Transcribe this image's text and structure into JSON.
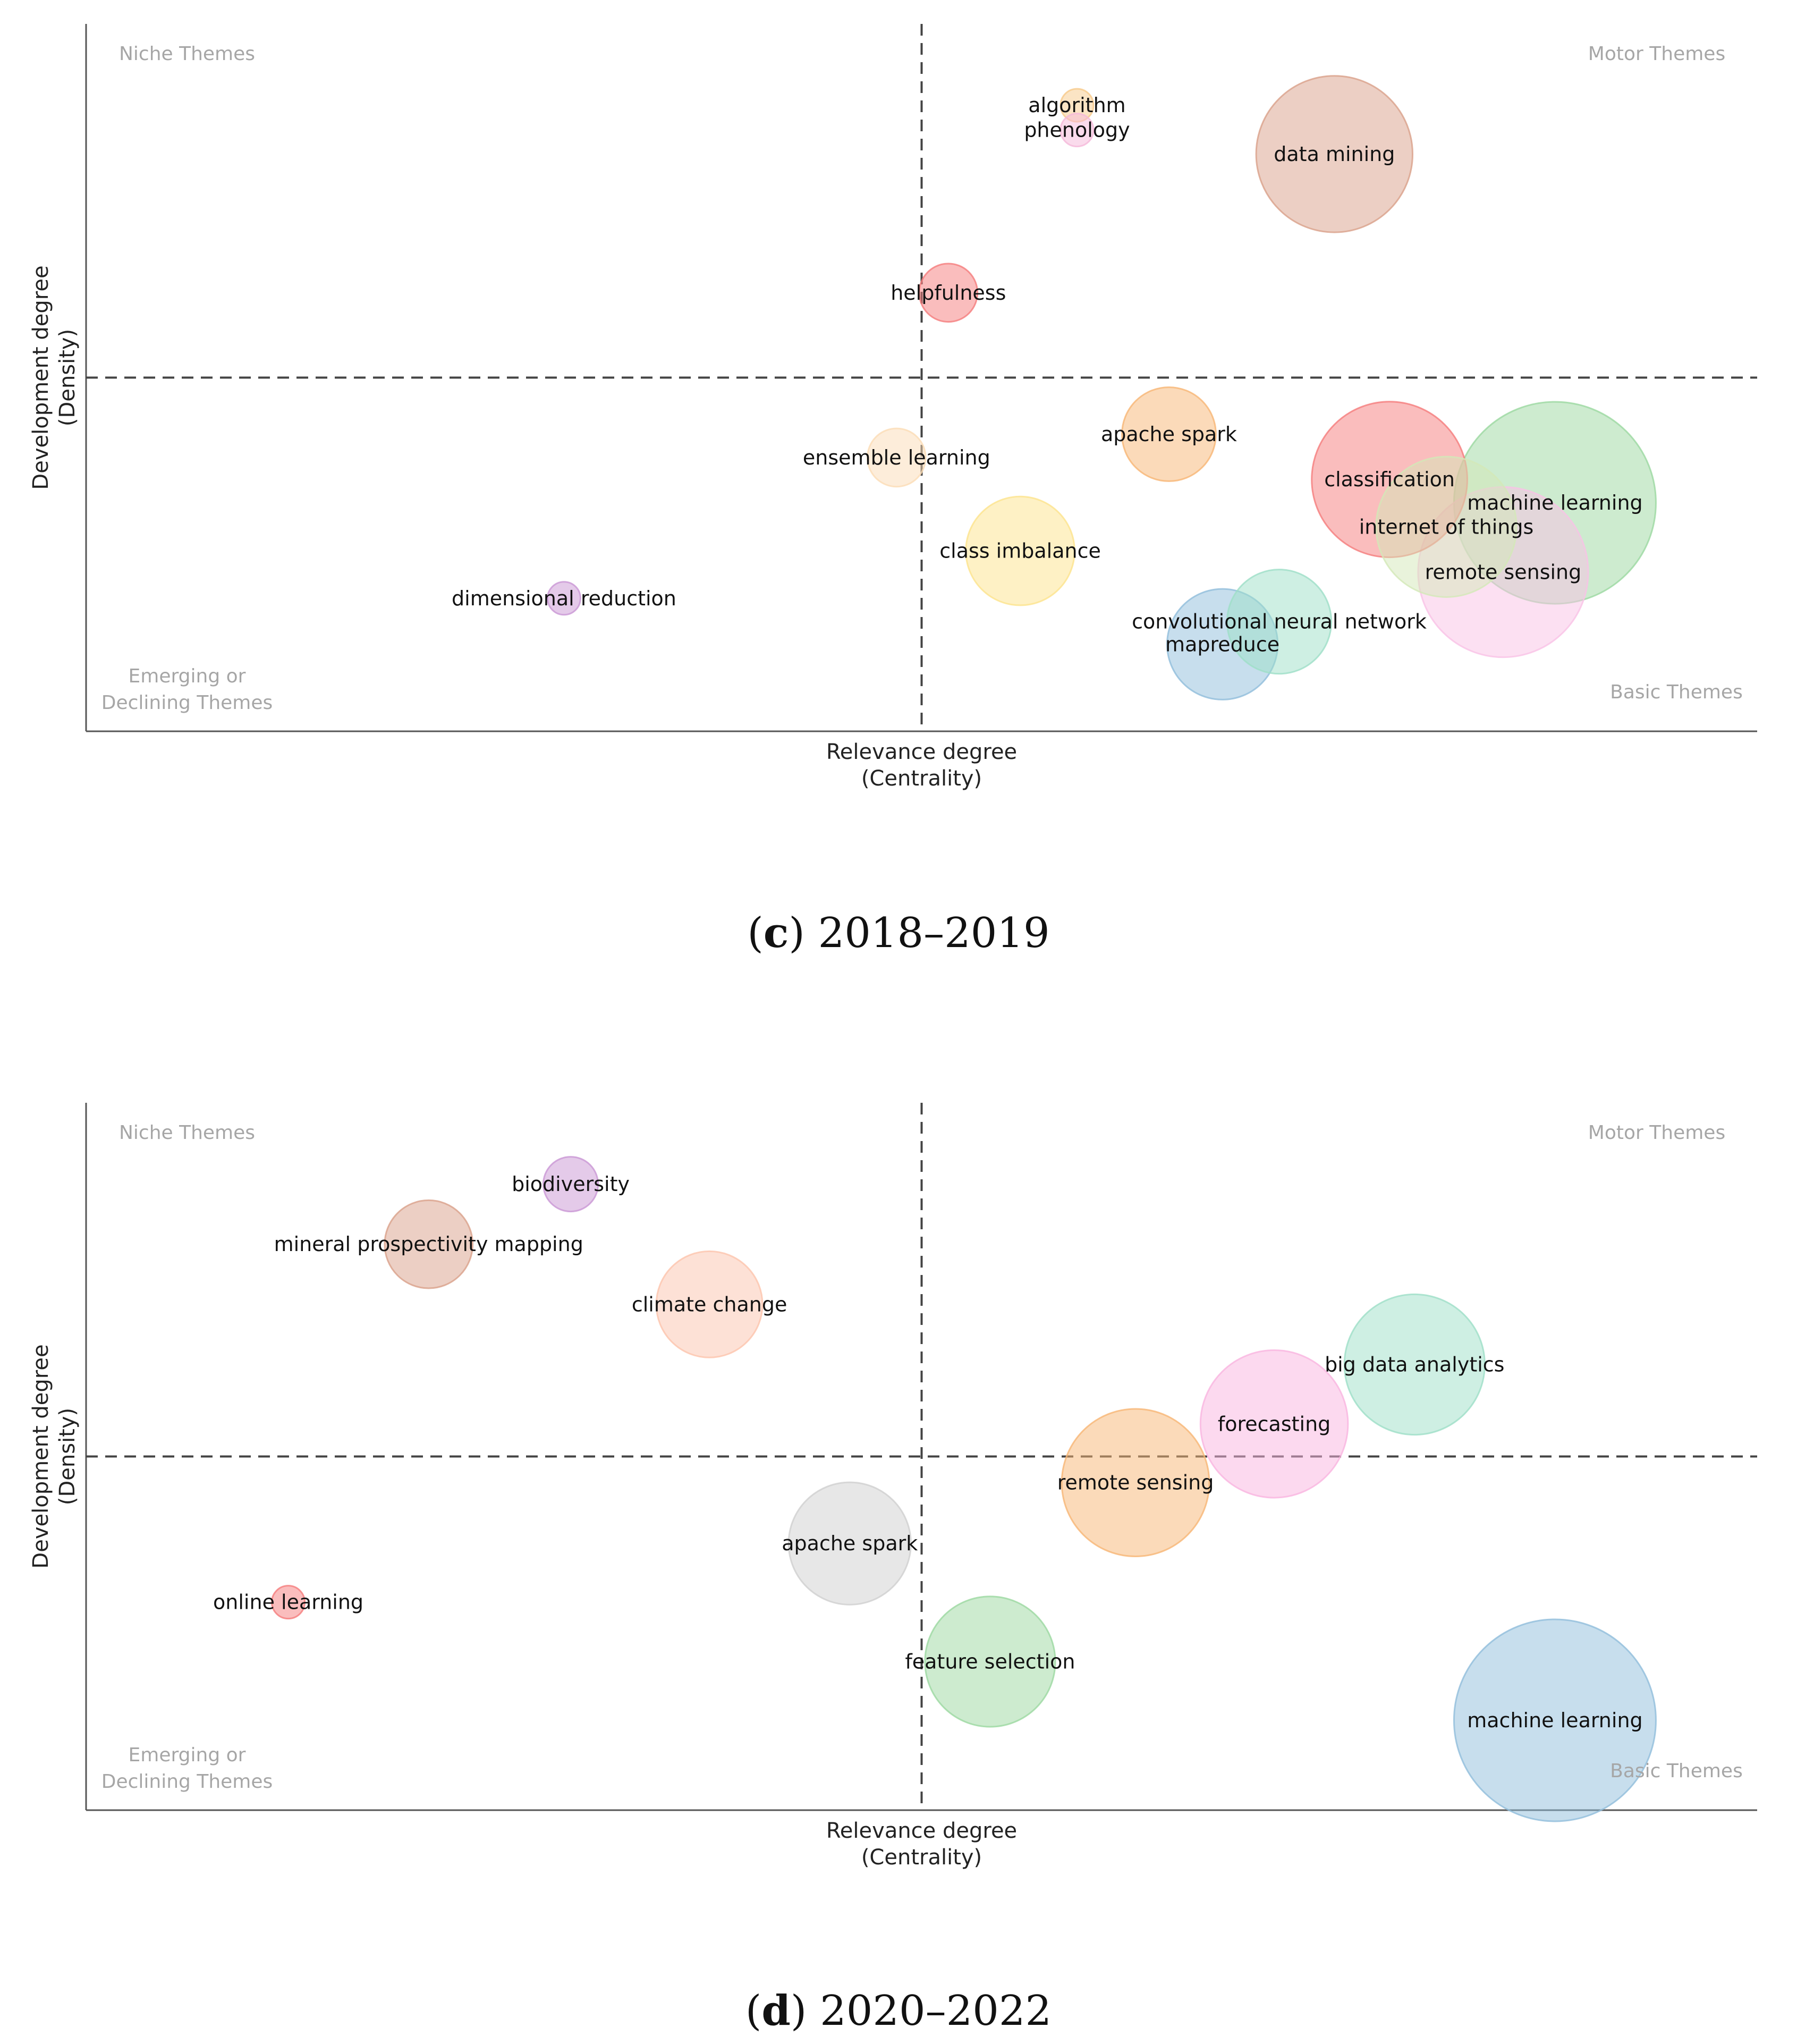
{
  "chart_data": [
    {
      "type": "scatter",
      "variant": "bubble strategic diagram",
      "caption": {
        "letter": "c",
        "years": "2018–2019"
      },
      "xlabel": [
        "Relevance degree",
        "(Centrality)"
      ],
      "ylabel": [
        "Development degree",
        "(Density)"
      ],
      "xlim": [
        0,
        100
      ],
      "ylim": [
        0,
        100
      ],
      "x_divider": 50,
      "y_divider": 50,
      "quadrants": {
        "top_left": [
          "Niche Themes"
        ],
        "top_right": [
          "Motor Themes"
        ],
        "bottom_left": [
          "Emerging or",
          "Declining Themes"
        ],
        "bottom_right": [
          "Basic Themes"
        ]
      },
      "points": [
        {
          "label": [
            "algorithm"
          ],
          "x": 59.3,
          "y": 88.5,
          "size": 0.8,
          "color": "#f7c98a"
        },
        {
          "label": [
            "phenology"
          ],
          "x": 59.3,
          "y": 85.0,
          "size": 0.8,
          "color": "#f5b8d9"
        },
        {
          "label": [
            "data mining"
          ],
          "x": 74.7,
          "y": 81.6,
          "size": 18.0,
          "color": "#d9a08a"
        },
        {
          "label": [
            "helpfulness"
          ],
          "x": 51.6,
          "y": 62.0,
          "size": 2.5,
          "color": "#f57c7c"
        },
        {
          "label": [
            "apache spark"
          ],
          "x": 64.8,
          "y": 42.0,
          "size": 6.5,
          "color": "#f8b574"
        },
        {
          "label": [
            "ensemble learning"
          ],
          "x": 48.5,
          "y": 38.7,
          "size": 2.5,
          "color": "#fbdcb5"
        },
        {
          "label": [
            "class imbalance"
          ],
          "x": 55.9,
          "y": 25.5,
          "size": 8.7,
          "color": "#fde48c"
        },
        {
          "label": [
            "dimensional reduction"
          ],
          "x": 28.6,
          "y": 18.8,
          "size": 0.8,
          "color": "#c996d4"
        },
        {
          "label": [
            "classification"
          ],
          "x": 78.0,
          "y": 35.6,
          "size": 17.8,
          "color": "#f57c7c"
        },
        {
          "label": [
            "machine learning"
          ],
          "x": 87.9,
          "y": 32.3,
          "size": 30.0,
          "color": "#9bd8a0"
        },
        {
          "label": [
            "internet of things"
          ],
          "x": 81.4,
          "y": 28.9,
          "size": 14.5,
          "color": "#d3e8b8"
        },
        {
          "label": [
            "remote sensing"
          ],
          "x": 84.8,
          "y": 22.5,
          "size": 21.3,
          "color": "#f9c2e6"
        },
        {
          "label": [
            "convolutional neural network"
          ],
          "x": 71.4,
          "y": 15.5,
          "size": 8.0,
          "color": "#9ddfc7"
        },
        {
          "label": [
            "mapreduce"
          ],
          "x": 68.0,
          "y": 12.3,
          "size": 9.0,
          "color": "#90bddb"
        }
      ]
    },
    {
      "type": "scatter",
      "variant": "bubble strategic diagram",
      "caption": {
        "letter": "d",
        "years": "2020–2022"
      },
      "xlabel": [
        "Relevance degree",
        "(Centrality)"
      ],
      "ylabel": [
        "Development degree",
        "(Density)"
      ],
      "xlim": [
        0,
        100
      ],
      "ylim": [
        0,
        100
      ],
      "x_divider": 50,
      "y_divider": 50,
      "quadrants": {
        "top_left": [
          "Niche Themes"
        ],
        "top_right": [
          "Motor Themes"
        ],
        "bottom_left": [
          "Emerging or",
          "Declining Themes"
        ],
        "bottom_right": [
          "Basic Themes"
        ]
      },
      "points": [
        {
          "label": [
            "biodiversity"
          ],
          "x": 29.0,
          "y": 88.5,
          "size": 2.2,
          "color": "#c996d4"
        },
        {
          "label": [
            "mineral prospectivity mapping"
          ],
          "x": 20.5,
          "y": 80.0,
          "size": 5.7,
          "color": "#d9a08a"
        },
        {
          "label": [
            "climate change"
          ],
          "x": 37.3,
          "y": 71.5,
          "size": 8.3,
          "color": "#fcc4ad"
        },
        {
          "label": [
            "big data analytics"
          ],
          "x": 79.5,
          "y": 63.0,
          "size": 14.5,
          "color": "#9ddfc7"
        },
        {
          "label": [
            "forecasting"
          ],
          "x": 71.1,
          "y": 54.6,
          "size": 16.0,
          "color": "#f9b4e0"
        },
        {
          "label": [
            "remote sensing"
          ],
          "x": 62.8,
          "y": 46.3,
          "size": 16.0,
          "color": "#f8b574"
        },
        {
          "label": [
            "apache spark"
          ],
          "x": 45.7,
          "y": 37.7,
          "size": 11.0,
          "color": "#cfcfcf"
        },
        {
          "label": [
            "online learning"
          ],
          "x": 12.1,
          "y": 29.4,
          "size": 0.8,
          "color": "#f57c7c"
        },
        {
          "label": [
            "feature selection"
          ],
          "x": 54.1,
          "y": 21.0,
          "size": 12.5,
          "color": "#9bd8a0"
        },
        {
          "label": [
            "machine learning"
          ],
          "x": 87.9,
          "y": 12.7,
          "size": 30.0,
          "color": "#90bddb"
        }
      ]
    }
  ]
}
